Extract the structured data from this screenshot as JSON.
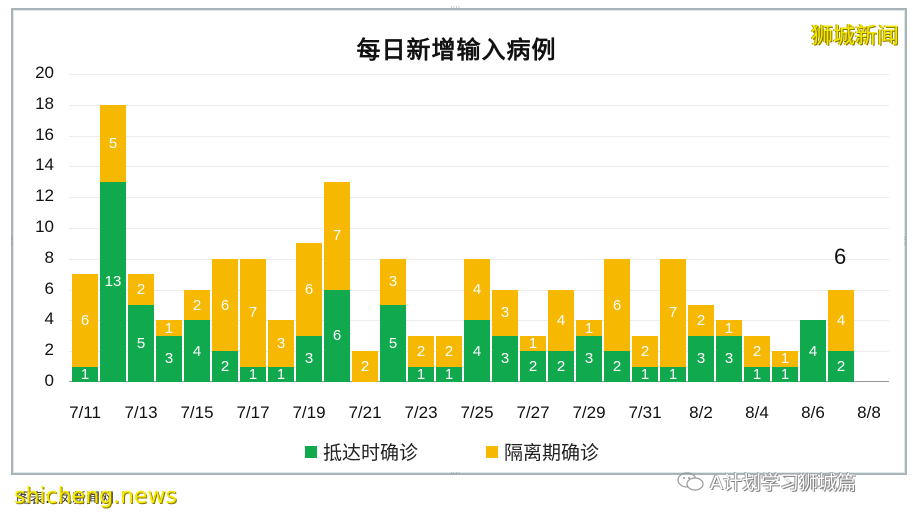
{
  "watermarks": {
    "top_right": "狮城新闻",
    "bottom_left": "shicheng.news",
    "bottom_left_underlay": "图表：凤新闻网",
    "bottom_right": "A计划学习狮城篇"
  },
  "colors": {
    "arrival": "#11a94e",
    "quarantine": "#f6b800",
    "watermark": "#f5e800"
  },
  "chart_data": {
    "type": "bar",
    "stacked": true,
    "title": "每日新增输入病例",
    "xlabel": "",
    "ylabel": "",
    "ylim": [
      0,
      20
    ],
    "yticks": [
      0,
      2,
      4,
      6,
      8,
      10,
      12,
      14,
      16,
      18,
      20
    ],
    "grid": true,
    "legend_position": "bottom",
    "categories": [
      "7/11",
      "7/12",
      "7/13",
      "7/14",
      "7/15",
      "7/16",
      "7/17",
      "7/18",
      "7/19",
      "7/20",
      "7/21",
      "7/22",
      "7/23",
      "7/24",
      "7/25",
      "7/26",
      "7/27",
      "7/28",
      "7/29",
      "7/30",
      "7/31",
      "8/1",
      "8/2",
      "8/3",
      "8/4",
      "8/5",
      "8/6",
      "8/7",
      "8/8"
    ],
    "xtick_labels": [
      "7/11",
      "7/13",
      "7/15",
      "7/17",
      "7/19",
      "7/21",
      "7/23",
      "7/25",
      "7/27",
      "7/29",
      "7/31",
      "8/2",
      "8/4",
      "8/6",
      "8/8"
    ],
    "series": [
      {
        "name": "抵达时确诊",
        "color": "#11a94e",
        "values": [
          1,
          13,
          5,
          3,
          4,
          2,
          1,
          1,
          3,
          6,
          0,
          5,
          1,
          1,
          4,
          3,
          2,
          2,
          3,
          2,
          1,
          1,
          3,
          3,
          1,
          1,
          4,
          2,
          0
        ]
      },
      {
        "name": "隔离期确诊",
        "color": "#f6b800",
        "values": [
          6,
          5,
          2,
          1,
          2,
          6,
          7,
          3,
          6,
          7,
          2,
          3,
          2,
          2,
          4,
          3,
          1,
          4,
          1,
          6,
          2,
          7,
          2,
          1,
          2,
          1,
          0,
          4,
          0
        ]
      }
    ],
    "annotations": [
      {
        "category": "8/7",
        "text": "6"
      }
    ]
  }
}
